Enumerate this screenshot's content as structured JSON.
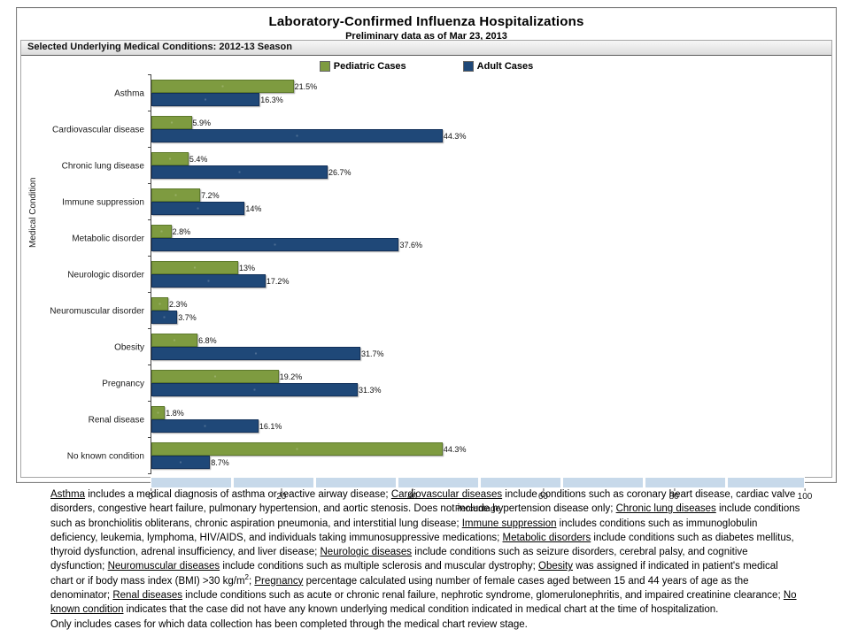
{
  "header": {
    "title": "Laboratory-Confirmed Influenza Hospitalizations",
    "subtitle": "Preliminary data as of Mar 23, 2013"
  },
  "panel": {
    "header": "Selected Underlying Medical Conditions: 2012-13 Season"
  },
  "chart_data": {
    "type": "bar",
    "orientation": "horizontal",
    "categories": [
      "Asthma",
      "Cardiovascular disease",
      "Chronic lung disease",
      "Immune suppression",
      "Metabolic disorder",
      "Neurologic disorder",
      "Neuromuscular disorder",
      "Obesity",
      "Pregnancy",
      "Renal disease",
      "No known condition"
    ],
    "series": [
      {
        "name": "Pediatric Cases",
        "color": "#7E9B40",
        "border_color": "#5E7A2C",
        "values": [
          21.5,
          5.9,
          5.4,
          7.2,
          2.8,
          13,
          2.3,
          6.8,
          19.2,
          1.8,
          44.3
        ],
        "labels": [
          "21.5%",
          "5.9%",
          "5.4%",
          "7.2%",
          "2.8%",
          "13%",
          "2.3%",
          "6.8%",
          "19.2%",
          "1.8%",
          "44.3%"
        ]
      },
      {
        "name": "Adult Cases",
        "color": "#1F4878",
        "border_color": "#12315B",
        "values": [
          16.3,
          44.3,
          26.7,
          14,
          37.6,
          17.2,
          3.7,
          31.7,
          31.3,
          16.1,
          8.7
        ],
        "labels": [
          "16.3%",
          "44.3%",
          "26.7%",
          "14%",
          "37.6%",
          "17.2%",
          "3.7%",
          "31.7%",
          "31.3%",
          "16.1%",
          "8.7%"
        ]
      }
    ],
    "title": "Selected Underlying Medical Conditions: 2012-13 Season",
    "xlabel": "Percentage",
    "ylabel": "Medical Condition",
    "xlim": [
      0,
      100
    ],
    "xticks": [
      0,
      20,
      40,
      60,
      80,
      100
    ],
    "grid": false,
    "legend_position": "top-center"
  },
  "scrollbar_color": "#C7D9EA",
  "footnote": {
    "segments": [
      {
        "t": "Asthma",
        "u": true
      },
      {
        "t": " includes a medical diagnosis of asthma or reactive airway disease; "
      },
      {
        "t": "Cardiovascular diseases",
        "u": true
      },
      {
        "t": " include conditions such as coronary heart disease, cardiac valve disorders, congestive heart failure, pulmonary hypertension, and aortic stenosis.  Does not include hypertension disease only;  "
      },
      {
        "t": "Chronic lung diseases",
        "u": true
      },
      {
        "t": " include conditions such as bronchiolitis obliterans, chronic aspiration pneumonia, and interstitial lung disease;  "
      },
      {
        "t": "Immune suppression",
        "u": true
      },
      {
        "t": " includes conditions such as immunoglobulin deficiency, leukemia, lymphoma, HIV/AIDS, and individuals taking immunosuppressive medications;  "
      },
      {
        "t": "Metabolic disorders",
        "u": true
      },
      {
        "t": " include conditions such as diabetes mellitus, thyroid dysfunction, adrenal insufficiency, and liver disease;  "
      },
      {
        "t": "Neurologic diseases",
        "u": true
      },
      {
        "t": " include conditions such as seizure disorders, cerebral palsy, and cognitive dysfunction;  "
      },
      {
        "t": "Neuromuscular diseases",
        "u": true
      },
      {
        "t": " include conditions such as multiple sclerosis and muscular dystrophy;  "
      },
      {
        "t": "Obesity",
        "u": true
      },
      {
        "t": " was assigned if indicated in patient's medical chart or if body mass index (BMI) >30 kg/m"
      },
      {
        "t": "2",
        "sup": true
      },
      {
        "t": ";  "
      },
      {
        "t": "Pregnancy",
        "u": true
      },
      {
        "t": " percentage calculated using number of female cases aged between 15 and 44 years of age as the denominator;  "
      },
      {
        "t": "Renal diseases",
        "u": true
      },
      {
        "t": " include conditions such as acute or chronic renal failure, nephrotic syndrome, glomerulonephritis, and impaired creatinine clearance;  "
      },
      {
        "t": "No known condition",
        "u": true
      },
      {
        "t": " indicates that the case did not have any known underlying medical condition indicated in medical chart at the time of hospitalization."
      }
    ],
    "note2": "Only includes cases for which data collection has been completed through the medical chart review stage."
  }
}
